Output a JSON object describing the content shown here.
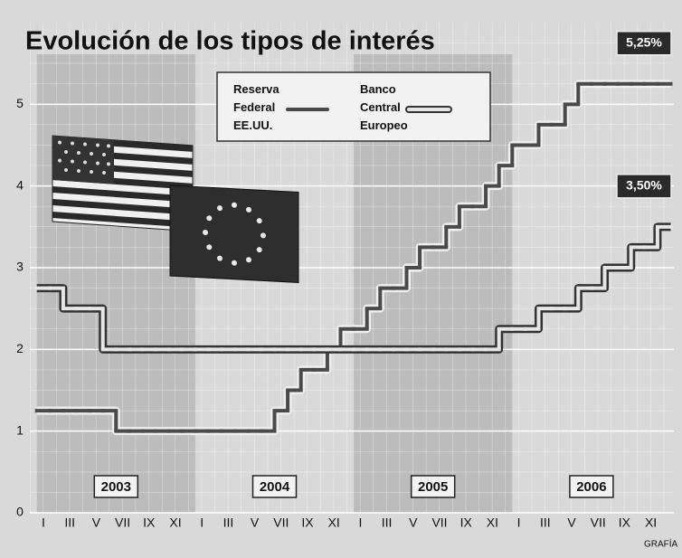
{
  "chart_data": {
    "type": "line",
    "step": true,
    "title": "Evolución de los tipos de interés",
    "source": "GRAFÍA",
    "categories": [
      "I",
      null,
      "III",
      null,
      "V",
      null,
      "VII",
      null,
      "IX",
      null,
      "XI",
      null,
      "I",
      null,
      "III",
      null,
      "V",
      null,
      "VII",
      null,
      "IX",
      null,
      "XI",
      null,
      "I",
      null,
      "III",
      null,
      "V",
      null,
      "VII",
      null,
      "IX",
      null,
      "XI",
      null,
      "I",
      null,
      "III",
      null,
      "V",
      null,
      "VII",
      null,
      "IX",
      null,
      "XI",
      null
    ],
    "years": [
      "2003",
      "2004",
      "2005",
      "2006"
    ],
    "ylim": [
      0,
      6
    ],
    "yticks": [
      0,
      1,
      2,
      3,
      4,
      5
    ],
    "series": [
      {
        "name": "Reserva Federal EE.UU.",
        "color": "#4a4a4a",
        "outline": "#eeeeee",
        "values": [
          1.25,
          1.25,
          1.25,
          1.25,
          1.25,
          1.25,
          1.0,
          1.0,
          1.0,
          1.0,
          1.0,
          1.0,
          1.0,
          1.0,
          1.0,
          1.0,
          1.0,
          1.0,
          1.25,
          1.5,
          1.75,
          1.75,
          2.0,
          2.25,
          2.25,
          2.5,
          2.75,
          2.75,
          3.0,
          3.25,
          3.25,
          3.5,
          3.75,
          3.75,
          4.0,
          4.25,
          4.5,
          4.5,
          4.75,
          4.75,
          5.0,
          5.25,
          5.25,
          5.25,
          5.25,
          5.25,
          5.25,
          5.25
        ],
        "value_labels": [
          null,
          null,
          null,
          null,
          null,
          null,
          null,
          null,
          null,
          null,
          null,
          null,
          null,
          null,
          null,
          null,
          null,
          null,
          null,
          null,
          null,
          null,
          null,
          null,
          null,
          null,
          null,
          null,
          null,
          null,
          null,
          null,
          null,
          null,
          null,
          null,
          null,
          null,
          null,
          null,
          null,
          null,
          null,
          null,
          null,
          null,
          null,
          "5,25%"
        ]
      },
      {
        "name": "Banco Central Europeo",
        "color": "#e6e6e6",
        "outline": "#333333",
        "values": [
          2.75,
          2.75,
          2.5,
          2.5,
          2.5,
          2.0,
          2.0,
          2.0,
          2.0,
          2.0,
          2.0,
          2.0,
          2.0,
          2.0,
          2.0,
          2.0,
          2.0,
          2.0,
          2.0,
          2.0,
          2.0,
          2.0,
          2.0,
          2.0,
          2.0,
          2.0,
          2.0,
          2.0,
          2.0,
          2.0,
          2.0,
          2.0,
          2.0,
          2.0,
          2.0,
          2.25,
          2.25,
          2.25,
          2.5,
          2.5,
          2.5,
          2.75,
          2.75,
          3.0,
          3.0,
          3.25,
          3.25,
          3.5
        ],
        "value_labels": [
          null,
          null,
          null,
          null,
          null,
          null,
          null,
          null,
          null,
          null,
          null,
          null,
          null,
          null,
          null,
          null,
          null,
          null,
          null,
          null,
          null,
          null,
          null,
          null,
          null,
          null,
          null,
          null,
          null,
          null,
          null,
          null,
          null,
          null,
          null,
          null,
          null,
          null,
          null,
          null,
          null,
          null,
          null,
          null,
          null,
          null,
          null,
          "3,50%"
        ]
      }
    ],
    "grid": true
  }
}
